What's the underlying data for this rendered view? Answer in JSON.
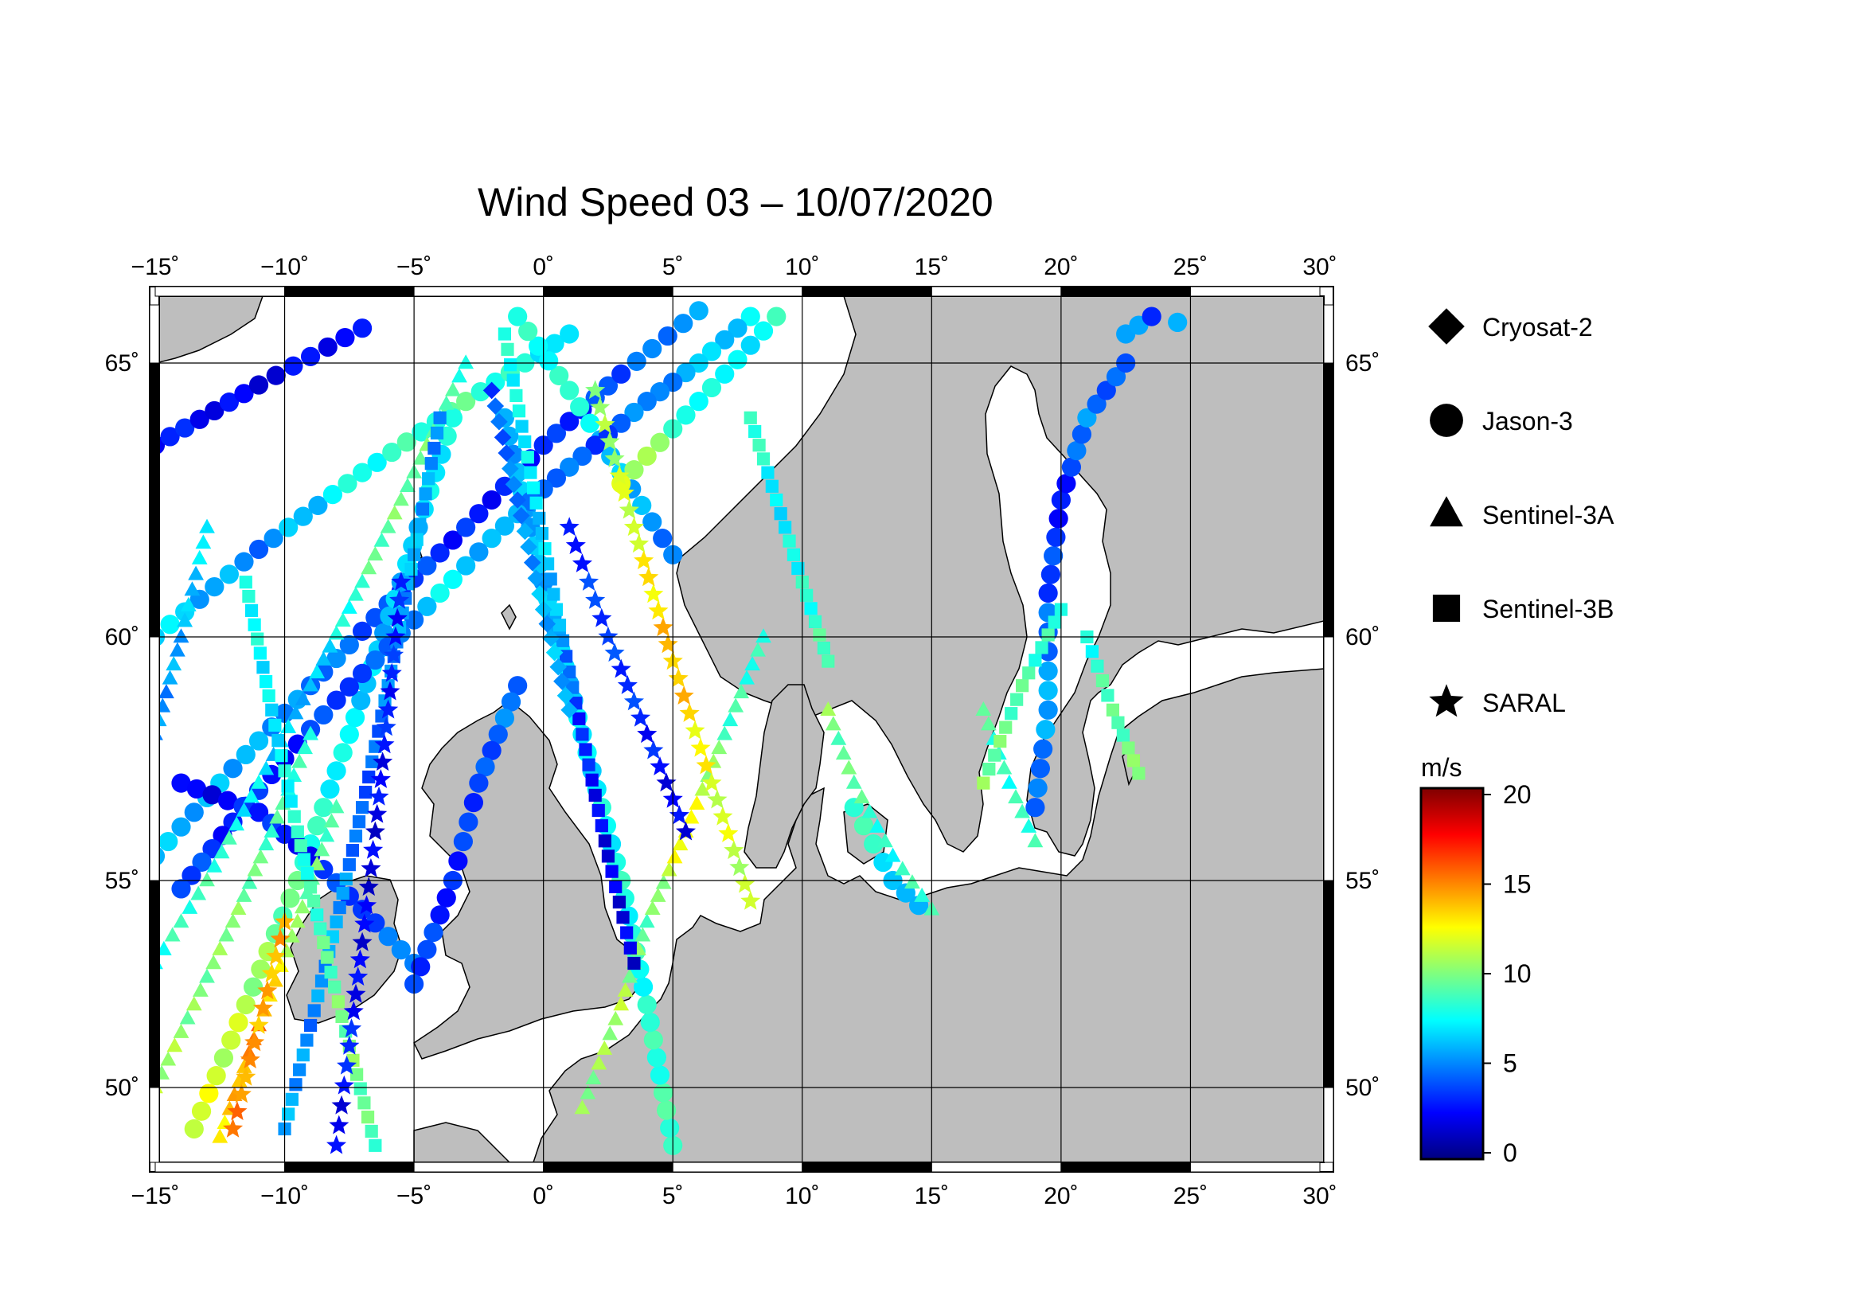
{
  "title": "Wind Speed 03 – 10/07/2020",
  "map": {
    "lon_range": [
      -15,
      30
    ],
    "lat_range": [
      48,
      66
    ],
    "projection": "conic",
    "land_color": "#bebebe",
    "sea_color": "#ffffff",
    "grid": true,
    "lon_ticks": [
      "−15˚",
      "−10˚",
      "−5˚",
      "0˚",
      "5˚",
      "10˚",
      "15˚",
      "20˚",
      "25˚",
      "30˚"
    ],
    "lat_ticks": [
      "50˚",
      "55˚",
      "60˚",
      "65˚"
    ]
  },
  "legend": {
    "items": [
      {
        "label": "Cryosat-2",
        "marker": "diamond"
      },
      {
        "label": "Jason-3",
        "marker": "circle"
      },
      {
        "label": "Sentinel-3A",
        "marker": "triangle"
      },
      {
        "label": "Sentinel-3B",
        "marker": "square"
      },
      {
        "label": "SARAL",
        "marker": "star"
      }
    ]
  },
  "colorbar": {
    "unit": "m/s",
    "range": [
      0,
      20
    ],
    "ticks": [
      "0",
      "5",
      "10",
      "15",
      "20"
    ],
    "colormap": [
      "#00007f",
      "#0000ff",
      "#007fff",
      "#00ffff",
      "#7fff7f",
      "#ffff00",
      "#ff7f00",
      "#ff0000",
      "#7f0000"
    ]
  },
  "tracks": [
    {
      "satellite": "Jason-3",
      "points": [
        [
          -15,
          55.5
        ],
        [
          -12,
          57.3
        ],
        [
          -9,
          59
        ],
        [
          -6,
          60.6
        ],
        [
          -3,
          62
        ],
        [
          0,
          63.5
        ],
        [
          3,
          64.8
        ],
        [
          6,
          65.9
        ]
      ],
      "speeds": [
        6,
        6,
        5,
        4,
        3,
        3,
        4,
        6
      ]
    },
    {
      "satellite": "Jason-3",
      "points": [
        [
          -15,
          60
        ],
        [
          -11,
          61.6
        ],
        [
          -7,
          63
        ],
        [
          -3,
          64.3
        ],
        [
          1,
          65.5
        ]
      ],
      "speeds": [
        7,
        5,
        8,
        9,
        7
      ]
    },
    {
      "satellite": "Jason-3",
      "points": [
        [
          -15,
          63.5
        ],
        [
          -11,
          64.6
        ],
        [
          -7,
          65.6
        ]
      ],
      "speeds": [
        3,
        2,
        3
      ]
    },
    {
      "satellite": "Jason-3",
      "points": [
        [
          -13.5,
          49
        ],
        [
          -11.5,
          52
        ],
        [
          -9.5,
          55
        ],
        [
          -7.5,
          58
        ],
        [
          -5.5,
          61
        ],
        [
          -3.5,
          64
        ]
      ],
      "speeds": [
        12,
        11,
        9,
        7,
        6,
        8
      ]
    },
    {
      "satellite": "Jason-3",
      "points": [
        [
          5,
          48.6
        ],
        [
          4,
          52
        ],
        [
          3,
          55
        ],
        [
          1.5,
          58
        ],
        [
          0,
          61
        ],
        [
          -1.5,
          64
        ]
      ],
      "speeds": [
        9,
        8,
        8,
        7,
        6,
        6
      ]
    },
    {
      "satellite": "Jason-3",
      "points": [
        [
          5,
          61.5
        ],
        [
          3,
          63
        ],
        [
          1,
          64.5
        ],
        [
          -1,
          65.8
        ]
      ],
      "speeds": [
        5,
        6,
        8,
        8
      ]
    },
    {
      "satellite": "Jason-3",
      "points": [
        [
          8,
          65.8
        ],
        [
          6,
          65
        ],
        [
          4,
          64.3
        ],
        [
          2,
          63.5
        ],
        [
          0,
          62.7
        ],
        [
          -2,
          61.8
        ],
        [
          -4,
          60.8
        ],
        [
          -6,
          59.8
        ],
        [
          -8,
          58.7
        ],
        [
          -10,
          57.5
        ],
        [
          -12,
          56.2
        ],
        [
          -14,
          54.8
        ]
      ],
      "speeds": [
        7,
        6,
        5,
        4,
        5,
        6,
        7,
        4,
        4,
        3,
        3,
        4
      ]
    },
    {
      "satellite": "Jason-3",
      "points": [
        [
          9,
          65.8
        ],
        [
          7,
          64.8
        ],
        [
          5,
          63.8
        ],
        [
          3,
          62.8
        ]
      ],
      "speeds": [
        8,
        7,
        9,
        12
      ]
    },
    {
      "satellite": "Jason-3",
      "points": [
        [
          -14,
          57
        ],
        [
          -11,
          56.4
        ],
        [
          -9,
          55.5
        ],
        [
          -7,
          54.3
        ],
        [
          -5,
          53
        ]
      ],
      "speeds": [
        2,
        3,
        3,
        4,
        5
      ]
    },
    {
      "satellite": "Jason-3",
      "points": [
        [
          19,
          56.5
        ],
        [
          19.5,
          58.5
        ],
        [
          19.5,
          60.8
        ],
        [
          20,
          62.5
        ],
        [
          21,
          64
        ],
        [
          22.5,
          65
        ]
      ],
      "speeds": [
        4,
        6,
        4,
        3,
        5,
        4
      ]
    },
    {
      "satellite": "Jason-3",
      "points": [
        [
          22.5,
          65.5
        ],
        [
          23.5,
          65.8
        ],
        [
          24.5,
          65.7
        ]
      ],
      "speeds": [
        6,
        4,
        6
      ]
    },
    {
      "satellite": "Jason-3",
      "points": [
        [
          12,
          56.5
        ],
        [
          13.5,
          55
        ],
        [
          14.5,
          54.4
        ]
      ],
      "speeds": [
        9,
        7,
        6
      ]
    },
    {
      "satellite": "Jason-3",
      "points": [
        [
          -1,
          59
        ],
        [
          -2.5,
          57
        ],
        [
          -3.5,
          55
        ],
        [
          -5,
          52.5
        ]
      ],
      "speeds": [
        5,
        4,
        3,
        4
      ]
    },
    {
      "satellite": "Sentinel-3A",
      "points": [
        [
          -15,
          53
        ],
        [
          -13,
          55
        ],
        [
          -11,
          57
        ],
        [
          -9,
          59
        ],
        [
          -7,
          61
        ],
        [
          -5,
          63
        ],
        [
          -3,
          65
        ]
      ],
      "speeds": [
        8,
        9,
        7,
        6,
        9,
        10,
        8
      ]
    },
    {
      "satellite": "Sentinel-3A",
      "points": [
        [
          -12.5,
          48.8
        ],
        [
          -11,
          51.5
        ],
        [
          -9.5,
          54
        ],
        [
          -8,
          56.5
        ]
      ],
      "speeds": [
        13,
        15,
        10,
        9
      ]
    },
    {
      "satellite": "Sentinel-3A",
      "points": [
        [
          -15,
          50
        ],
        [
          -13.5,
          52
        ],
        [
          -12,
          54
        ],
        [
          -10.5,
          56
        ],
        [
          -9,
          58
        ]
      ],
      "speeds": [
        11,
        10,
        10,
        9,
        8
      ]
    },
    {
      "satellite": "Sentinel-3A",
      "points": [
        [
          1.5,
          49.5
        ],
        [
          3,
          52
        ],
        [
          4,
          54
        ],
        [
          5.5,
          56
        ],
        [
          7,
          58
        ],
        [
          8.5,
          60
        ]
      ],
      "speeds": [
        10,
        11,
        9,
        13,
        9,
        8
      ]
    },
    {
      "satellite": "Sentinel-3A",
      "points": [
        [
          11,
          58.5
        ],
        [
          12,
          57
        ],
        [
          13.5,
          55.5
        ],
        [
          15,
          54.3
        ]
      ],
      "speeds": [
        10,
        9,
        8,
        9
      ]
    },
    {
      "satellite": "Sentinel-3A",
      "points": [
        [
          17,
          58.5
        ],
        [
          18,
          57
        ],
        [
          19,
          55.8
        ]
      ],
      "speeds": [
        9,
        8,
        9
      ]
    },
    {
      "satellite": "Sentinel-3A",
      "points": [
        [
          -15,
          58
        ],
        [
          -14,
          60
        ],
        [
          -13,
          62
        ]
      ],
      "speeds": [
        5,
        6,
        7
      ]
    },
    {
      "satellite": "Sentinel-3B",
      "points": [
        [
          -10,
          49
        ],
        [
          -9,
          51.5
        ],
        [
          -8,
          54
        ],
        [
          -7,
          56.5
        ],
        [
          -6,
          59
        ],
        [
          -5,
          61.5
        ],
        [
          -4,
          64
        ]
      ],
      "speeds": [
        6,
        5,
        6,
        4,
        5,
        6,
        5
      ]
    },
    {
      "satellite": "Sentinel-3B",
      "points": [
        [
          3.5,
          53
        ],
        [
          2.5,
          55.5
        ],
        [
          1.5,
          58
        ],
        [
          0.5,
          60.5
        ],
        [
          -0.5,
          63
        ],
        [
          -1.5,
          65.5
        ]
      ],
      "speeds": [
        2,
        2,
        3,
        6,
        7,
        8
      ]
    },
    {
      "satellite": "Sentinel-3B",
      "points": [
        [
          -6.5,
          48.6
        ],
        [
          -7.5,
          51
        ],
        [
          -8.5,
          53.5
        ],
        [
          -9.5,
          56
        ],
        [
          -10.5,
          58.5
        ],
        [
          -11.5,
          61
        ]
      ],
      "speeds": [
        9,
        10,
        9,
        8,
        7,
        8
      ]
    },
    {
      "satellite": "Sentinel-3B",
      "points": [
        [
          8,
          64
        ],
        [
          9,
          62.5
        ],
        [
          10,
          61
        ],
        [
          11,
          59.5
        ]
      ],
      "speeds": [
        9,
        7,
        8,
        9
      ]
    },
    {
      "satellite": "Sentinel-3B",
      "points": [
        [
          21,
          60
        ],
        [
          22,
          58.5
        ],
        [
          23,
          57.2
        ]
      ],
      "speeds": [
        8,
        9,
        10
      ]
    },
    {
      "satellite": "Sentinel-3B",
      "points": [
        [
          17,
          57
        ],
        [
          18.5,
          59
        ],
        [
          20,
          60.5
        ]
      ],
      "speeds": [
        10,
        9,
        8
      ]
    },
    {
      "satellite": "SARAL",
      "points": [
        [
          -8,
          48.6
        ],
        [
          -7.5,
          51
        ],
        [
          -7,
          53.5
        ],
        [
          -6.5,
          56
        ],
        [
          -6,
          58.5
        ],
        [
          -5.5,
          61
        ]
      ],
      "speeds": [
        2,
        3,
        2,
        2,
        3,
        3
      ]
    },
    {
      "satellite": "SARAL",
      "points": [
        [
          8,
          54.5
        ],
        [
          6.5,
          57
        ],
        [
          5,
          59.5
        ],
        [
          3.5,
          62
        ],
        [
          2,
          64.5
        ]
      ],
      "speeds": [
        11,
        12,
        14,
        12,
        10
      ]
    },
    {
      "satellite": "SARAL",
      "points": [
        [
          -12,
          49
        ],
        [
          -11,
          51.5
        ],
        [
          -10,
          54
        ]
      ],
      "speeds": [
        15,
        14,
        14
      ]
    },
    {
      "satellite": "SARAL",
      "points": [
        [
          5.5,
          56
        ],
        [
          4,
          58
        ],
        [
          2.5,
          60
        ],
        [
          1,
          62
        ]
      ],
      "speeds": [
        2,
        3,
        4,
        3
      ]
    },
    {
      "satellite": "Cryosat-2",
      "points": [
        [
          -2,
          64.5
        ],
        [
          -1,
          62.5
        ],
        [
          0,
          60.5
        ],
        [
          1,
          58.5
        ]
      ],
      "speeds": [
        4,
        5,
        6,
        6
      ]
    }
  ]
}
